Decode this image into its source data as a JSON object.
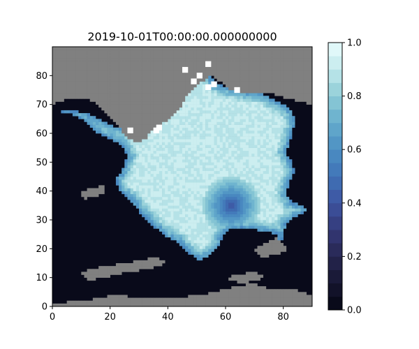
{
  "chart_data": {
    "type": "heatmap",
    "title": "2019-10-01T00:00:00.000000000",
    "xlabel": "",
    "ylabel": "",
    "xlim": [
      0,
      90
    ],
    "ylim": [
      0,
      90
    ],
    "x_ticks": [
      0,
      20,
      40,
      60,
      80
    ],
    "y_ticks": [
      0,
      10,
      20,
      30,
      40,
      50,
      60,
      70,
      80
    ],
    "colormap": "ice",
    "colorbar": {
      "range": [
        0.0,
        1.0
      ],
      "ticks": [
        "0.0",
        "0.2",
        "0.4",
        "0.6",
        "0.8",
        "1.0"
      ],
      "levels": 20
    },
    "land_color": "#808080",
    "missing_color": "#ffffff",
    "field_description_values": {
      "open_water": 0.0,
      "central_pack_ice": 0.9,
      "low_concentration_patch_center": [
        62,
        35
      ],
      "low_concentration_patch_value": 0.4
    },
    "grid": false
  }
}
